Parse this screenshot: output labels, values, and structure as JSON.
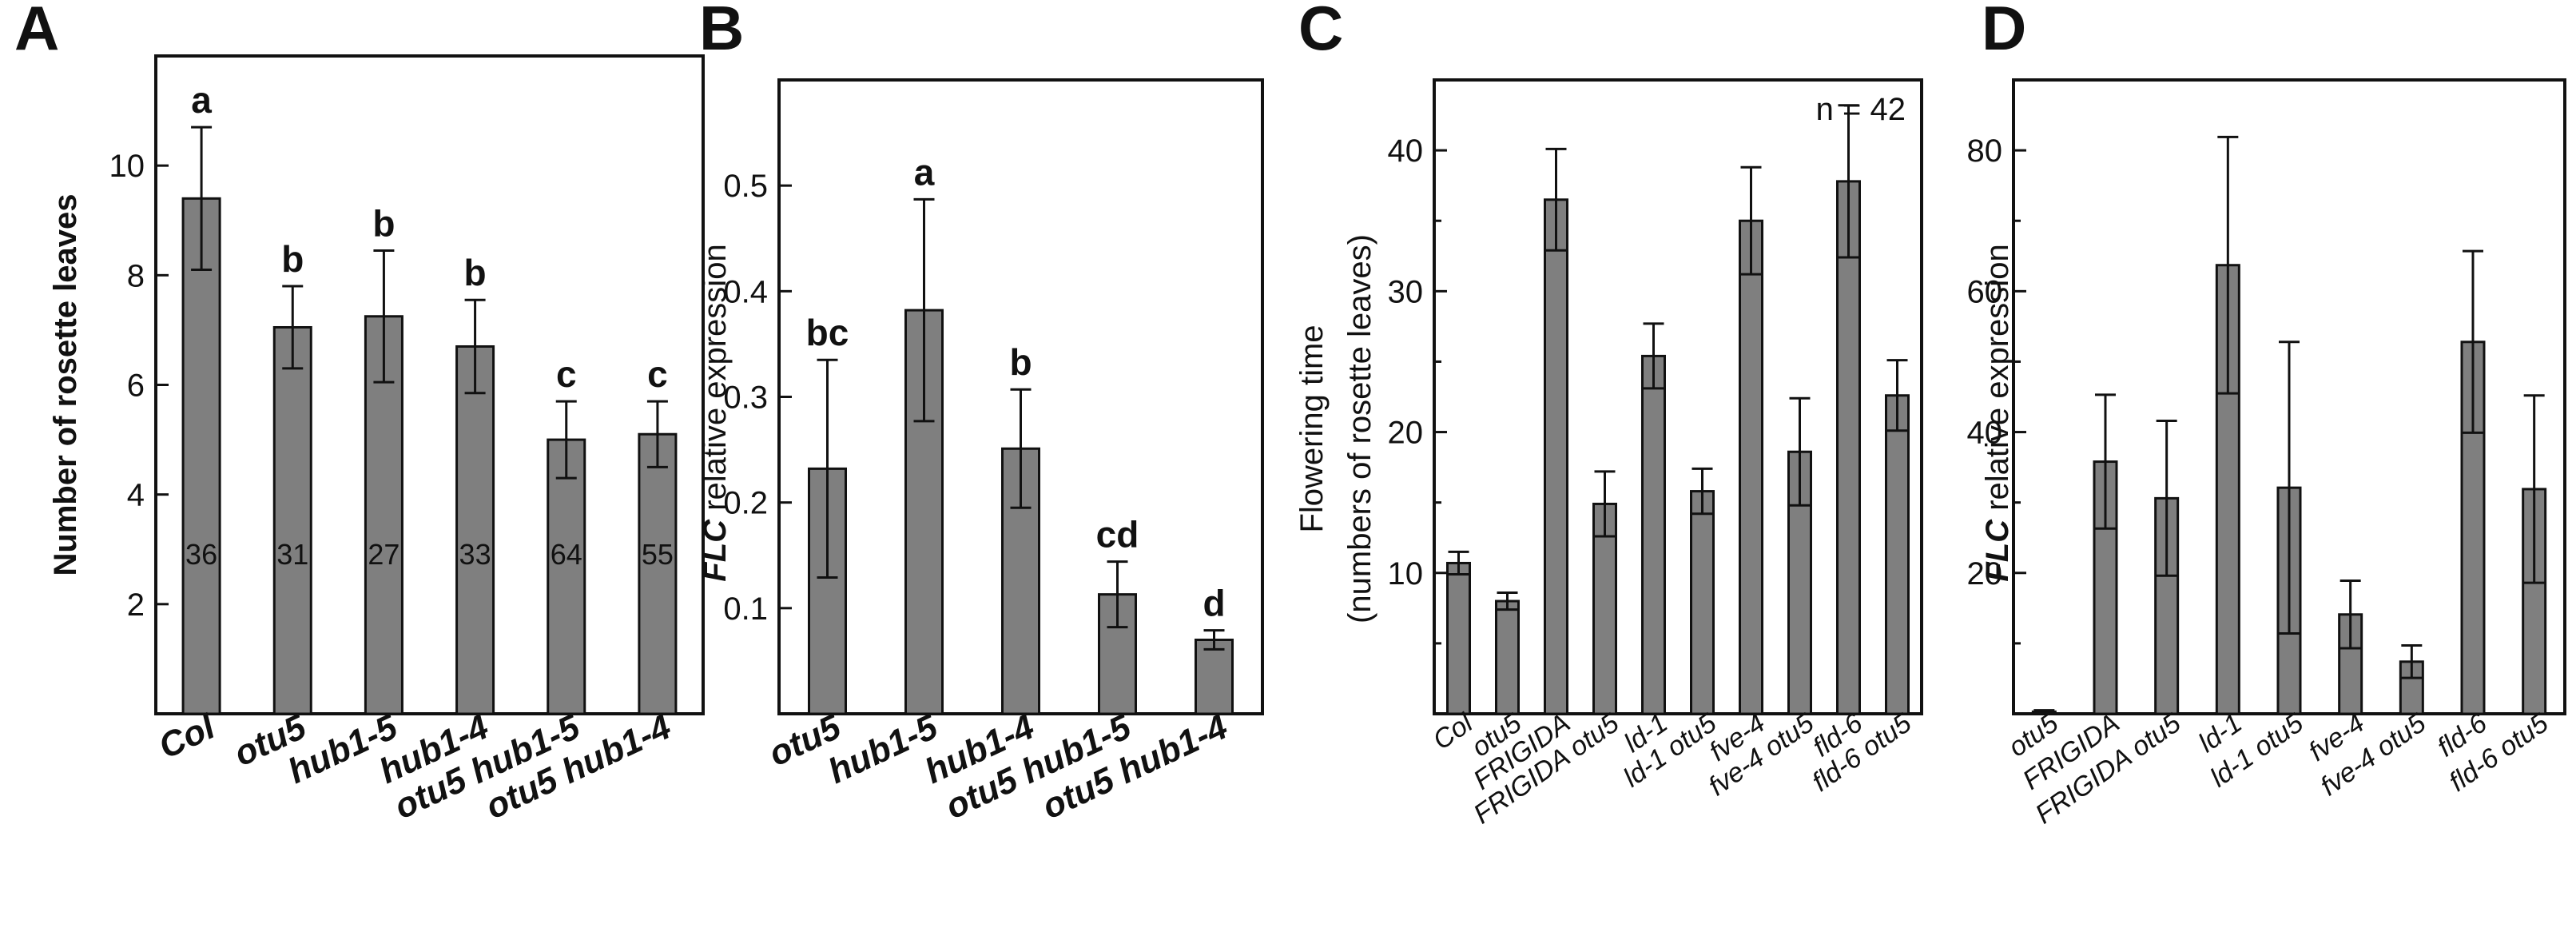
{
  "colors": {
    "bar": "#7f7f7f",
    "axis": "#111111",
    "background": "#ffffff"
  },
  "chart_data": [
    {
      "panel": "A",
      "type": "bar",
      "ylabel": "Number of rosette leaves",
      "ylim": [
        0,
        12
      ],
      "yticks": [
        2,
        4,
        6,
        8,
        10
      ],
      "categories": [
        "Col",
        "otu5",
        "hub1-5",
        "hub1-4",
        "otu5 hub1-5",
        "otu5 hub1-4"
      ],
      "values": [
        9.4,
        7.05,
        7.25,
        6.7,
        5.0,
        5.1
      ],
      "errors": [
        1.3,
        0.75,
        1.2,
        0.85,
        0.7,
        0.6
      ],
      "significance": [
        "a",
        "b",
        "b",
        "b",
        "c",
        "c"
      ],
      "n_labels": [
        "36",
        "31",
        "27",
        "33",
        "64",
        "55"
      ],
      "tick_style": "bold"
    },
    {
      "panel": "B",
      "type": "bar",
      "ylabel": "FLC relative expression",
      "ylabel_italic_prefix": "FLC",
      "ylabel_rest": " relative expression",
      "ylim": [
        0,
        0.6
      ],
      "yticks": [
        0.1,
        0.2,
        0.3,
        0.4,
        0.5
      ],
      "ytick_labels": [
        "0.1",
        "0.2",
        "0.3",
        "0.4",
        "0.5"
      ],
      "categories": [
        "otu5",
        "hub1-5",
        "hub1-4",
        "otu5 hub1-5",
        "otu5 hub1-4"
      ],
      "values": [
        0.232,
        0.382,
        0.251,
        0.113,
        0.07
      ],
      "errors": [
        0.103,
        0.105,
        0.056,
        0.031,
        0.009
      ],
      "significance": [
        "bc",
        "a",
        "b",
        "cd",
        "d"
      ],
      "tick_style": "bold"
    },
    {
      "panel": "C",
      "type": "bar",
      "ylabel": "Flowering time",
      "ylabel2": "(numbers of rosette leaves)",
      "ylim": [
        0,
        45
      ],
      "yticks": [
        10,
        20,
        30,
        40
      ],
      "minor_yticks": [
        5,
        15,
        25,
        35,
        45
      ],
      "annotation": "n = 42",
      "categories": [
        "Col",
        "otu5",
        "FRIGIDA",
        "FRIGIDA otu5",
        "ld-1",
        "ld-1 otu5",
        "fve-4",
        "fve-4 otu5",
        "fld-6",
        "fld-6 otu5"
      ],
      "values": [
        10.7,
        8.0,
        36.5,
        14.9,
        25.4,
        15.8,
        35.0,
        18.6,
        37.8,
        22.6
      ],
      "errors": [
        0.8,
        0.6,
        3.6,
        2.3,
        2.3,
        1.6,
        3.8,
        3.8,
        5.4,
        2.5
      ],
      "tick_style": "italic"
    },
    {
      "panel": "D",
      "type": "bar",
      "ylabel": "FLC relative expression",
      "ylabel_italic_prefix": "FLC",
      "ylabel_rest": " relative expression",
      "ylim": [
        0,
        90
      ],
      "yticks": [
        20,
        40,
        60,
        80
      ],
      "minor_yticks": [
        10,
        30,
        50,
        70
      ],
      "categories": [
        "otu5",
        "FRIGIDA",
        "FRIGIDA otu5",
        "ld-1",
        "ld-1 otu5",
        "fve-4",
        "fve-4 otu5",
        "fld-6",
        "fld-6 otu5"
      ],
      "values": [
        0.3,
        35.8,
        30.6,
        63.7,
        32.1,
        14.1,
        7.4,
        52.8,
        31.9
      ],
      "errors": [
        0.2,
        9.5,
        11.0,
        18.2,
        20.7,
        4.8,
        2.3,
        12.9,
        13.3
      ],
      "tick_style": "italic"
    }
  ]
}
